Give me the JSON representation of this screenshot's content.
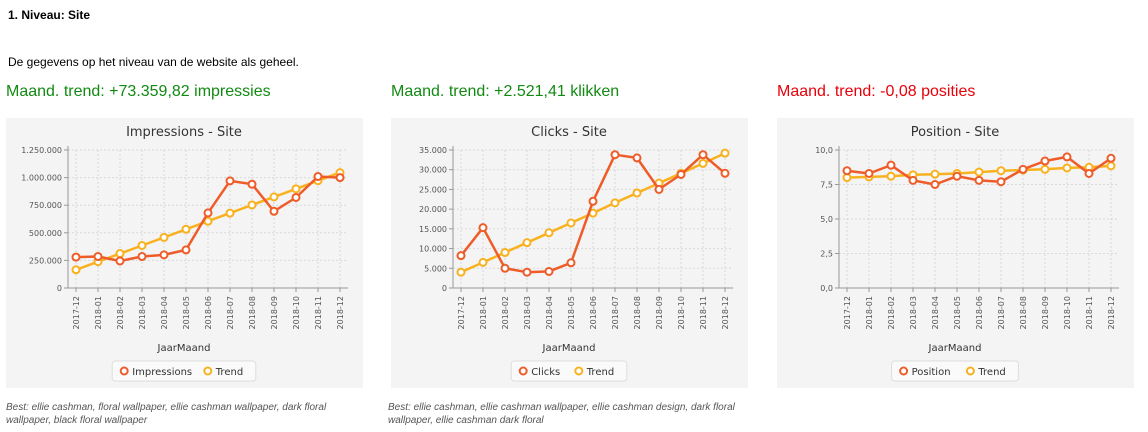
{
  "header": {
    "title": "1. Niveau: Site",
    "intro": "De gegevens op het niveau van de website als geheel."
  },
  "trends": [
    {
      "text": "Maand. trend: +73.359,82 impressies",
      "color": "#128a12"
    },
    {
      "text": "Maand. trend: +2.521,41 klikken",
      "color": "#128a12"
    },
    {
      "text": "Maand. trend: -0,08 posities",
      "color": "#e8000b"
    }
  ],
  "best": [
    "Best: ellie cashman, floral wallpaper, ellie cashman wallpaper, dark floral wallpaper, black floral wallpaper",
    "Best: ellie cashman, ellie cashman wallpaper, ellie cashman design, dark floral wallpaper, ellie cashman dark floral"
  ],
  "colors": {
    "series": "#ee5c2a",
    "trend": "#f8b21f",
    "positive": "#128a12",
    "negative": "#e8000b"
  },
  "chart_data": [
    {
      "type": "line",
      "title": "Impressions -  Site",
      "xlabel": "JaarMaand",
      "ylabel": "",
      "categories": [
        "2017-12",
        "2018-01",
        "2018-02",
        "2018-03",
        "2018-04",
        "2018-05",
        "2018-06",
        "2018-07",
        "2018-08",
        "2018-09",
        "2018-10",
        "2018-11",
        "2018-12"
      ],
      "ylim": [
        0,
        1250000
      ],
      "yticks": [
        "0",
        "250.000",
        "500.000",
        "750.000",
        "1.000.000",
        "1.250.000"
      ],
      "grid": true,
      "legend": "bottom",
      "series": [
        {
          "name": "Impressions",
          "values": [
            280000,
            285000,
            245000,
            285000,
            300000,
            345000,
            680000,
            970000,
            940000,
            695000,
            820000,
            1010000,
            1000000
          ]
        },
        {
          "name": "Trend",
          "values": [
            165000,
            238000,
            312000,
            385000,
            458000,
            532000,
            605000,
            678000,
            752000,
            825000,
            898000,
            972000,
            1045000
          ]
        }
      ]
    },
    {
      "type": "line",
      "title": "Clicks -  Site",
      "xlabel": "JaarMaand",
      "ylabel": "",
      "categories": [
        "2017-12",
        "2018-01",
        "2018-02",
        "2018-03",
        "2018-04",
        "2018-05",
        "2018-06",
        "2018-07",
        "2018-08",
        "2018-09",
        "2018-10",
        "2018-11",
        "2018-12"
      ],
      "ylim": [
        0,
        35000
      ],
      "yticks": [
        "0",
        "5.000",
        "10.000",
        "15.000",
        "20.000",
        "25.000",
        "30.000",
        "35.000"
      ],
      "grid": true,
      "legend": "bottom",
      "series": [
        {
          "name": "Clicks",
          "values": [
            8200,
            15300,
            5000,
            4000,
            4200,
            6400,
            22000,
            33800,
            33000,
            25000,
            28800,
            33800,
            29100
          ]
        },
        {
          "name": "Trend",
          "values": [
            4000,
            6500,
            9000,
            11500,
            14000,
            16500,
            19000,
            21600,
            24100,
            26600,
            29100,
            31600,
            34200
          ]
        }
      ]
    },
    {
      "type": "line",
      "title": "Position -  Site",
      "xlabel": "JaarMaand",
      "ylabel": "",
      "categories": [
        "2017-12",
        "2018-01",
        "2018-02",
        "2018-03",
        "2018-04",
        "2018-05",
        "2018-06",
        "2018-07",
        "2018-08",
        "2018-09",
        "2018-10",
        "2018-11",
        "2018-12"
      ],
      "ylim": [
        0,
        10
      ],
      "yticks": [
        "0,0",
        "2,5",
        "5,0",
        "7,5",
        "10,0"
      ],
      "grid": true,
      "legend": "bottom",
      "series": [
        {
          "name": "Position",
          "values": [
            8.5,
            8.3,
            8.9,
            7.8,
            7.5,
            8.1,
            7.8,
            7.7,
            8.6,
            9.2,
            9.5,
            8.3,
            9.4
          ]
        },
        {
          "name": "Trend",
          "values": [
            8.0,
            8.05,
            8.1,
            8.2,
            8.25,
            8.3,
            8.4,
            8.5,
            8.55,
            8.6,
            8.7,
            8.75,
            8.85
          ]
        }
      ]
    }
  ]
}
